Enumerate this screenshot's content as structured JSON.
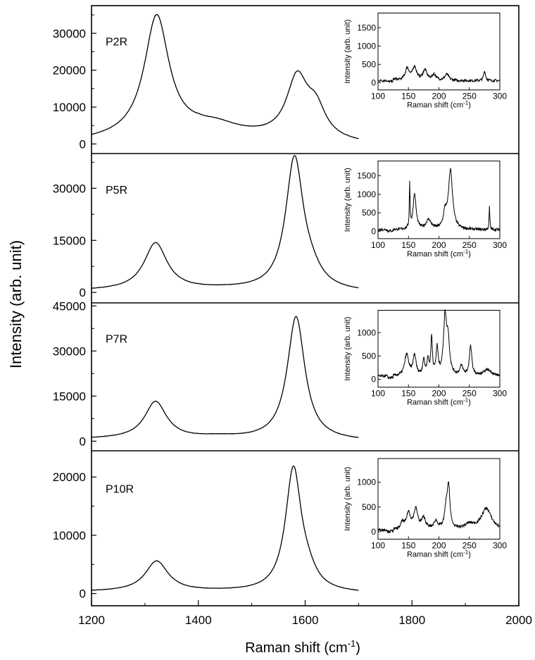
{
  "figure": {
    "ylabel": "Intensity (arb. unit)",
    "xlabel": "Raman shift (cm",
    "xlabel_sup": "-1",
    "xlabel_close": ")"
  },
  "chart_data": {
    "type": "line",
    "shared_x_axis": {
      "label": "Raman shift (cm-1)",
      "xlim": [
        1200,
        2000
      ],
      "ticks": [
        1200,
        1400,
        1600,
        1800,
        2000
      ],
      "data_range": [
        1200,
        1700
      ]
    },
    "panels": [
      {
        "label": "P2R",
        "ylim": [
          -2600,
          37500
        ],
        "yticks": [
          0,
          10000,
          20000,
          30000
        ],
        "series": [
          {
            "peaks": [
              {
                "center": 1322,
                "height": 32500,
                "width": 28
              },
              {
                "center": 1435,
                "height": 2000,
                "width": 45
              },
              {
                "center": 1585,
                "height": 16000,
                "width": 24
              },
              {
                "center": 1620,
                "height": 7500,
                "width": 22
              }
            ],
            "baseline": [
              [
                1200,
                800
              ],
              [
                1400,
                3000
              ],
              [
                1500,
                2000
              ],
              [
                1700,
                0
              ]
            ]
          }
        ],
        "inset": {
          "type": "line",
          "xlabel": "Raman shift (cm",
          "xlabel_sup": "-1",
          "xlabel_close": ")",
          "ylabel": "Intensity (arb. unit)",
          "xlim": [
            100,
            300
          ],
          "xticks": [
            100,
            150,
            200,
            250,
            300
          ],
          "ylim": [
            -200,
            1900
          ],
          "yticks": [
            0,
            500,
            1000,
            1500
          ],
          "peaks": [
            {
              "center": 127,
              "height": 30,
              "width": 4
            },
            {
              "center": 148,
              "height": 330,
              "width": 4
            },
            {
              "center": 160,
              "height": 360,
              "width": 4
            },
            {
              "center": 177,
              "height": 280,
              "width": 4
            },
            {
              "center": 192,
              "height": 160,
              "width": 4
            },
            {
              "center": 213,
              "height": 170,
              "width": 4
            },
            {
              "center": 275,
              "height": 260,
              "width": 2
            }
          ],
          "baseline": [
            [
              100,
              50
            ],
            [
              300,
              50
            ]
          ]
        }
      },
      {
        "label": "P5R",
        "ylim": [
          -3000,
          40000
        ],
        "yticks": [
          0,
          15000,
          30000
        ],
        "series": [
          {
            "peaks": [
              {
                "center": 1320,
                "height": 13500,
                "width": 26
              },
              {
                "center": 1580,
                "height": 37500,
                "width": 20
              },
              {
                "center": 1610,
                "height": 3500,
                "width": 25
              }
            ],
            "baseline": [
              [
                1200,
                500
              ],
              [
                1450,
                800
              ],
              [
                1700,
                0
              ]
            ]
          }
        ],
        "inset": {
          "type": "line",
          "xlabel": "Raman shift (cm",
          "xlabel_sup": "-1",
          "xlabel_close": ")",
          "ylabel": "Intensity (arb. unit)",
          "xlim": [
            100,
            300
          ],
          "xticks": [
            100,
            150,
            200,
            250,
            300
          ],
          "ylim": [
            -200,
            1900
          ],
          "yticks": [
            0,
            500,
            1000,
            1500
          ],
          "peaks": [
            {
              "center": 152,
              "height": 1200,
              "width": 0.7
            },
            {
              "center": 160,
              "height": 950,
              "width": 3
            },
            {
              "center": 183,
              "height": 250,
              "width": 5
            },
            {
              "center": 210,
              "height": 400,
              "width": 3
            },
            {
              "center": 219,
              "height": 1600,
              "width": 4
            },
            {
              "center": 283,
              "height": 620,
              "width": 0.7
            }
          ],
          "baseline": [
            [
              100,
              40
            ],
            [
              300,
              40
            ]
          ]
        }
      },
      {
        "label": "P7R",
        "ylim": [
          -3200,
          46000
        ],
        "yticks": [
          0,
          15000,
          30000,
          45000
        ],
        "series": [
          {
            "peaks": [
              {
                "center": 1320,
                "height": 12300,
                "width": 25
              },
              {
                "center": 1435,
                "height": 500,
                "width": 40
              },
              {
                "center": 1583,
                "height": 41000,
                "width": 20
              }
            ],
            "baseline": [
              [
                1200,
                700
              ],
              [
                1450,
                700
              ],
              [
                1700,
                0
              ]
            ]
          }
        ],
        "inset": {
          "type": "line",
          "xlabel": "Raman shift (cm",
          "xlabel_sup": "-1",
          "xlabel_close": ")",
          "ylabel": "Intensity (arb. unit)",
          "xlim": [
            100,
            300
          ],
          "xticks": [
            100,
            150,
            200,
            250,
            300
          ],
          "ylim": [
            -170,
            1480
          ],
          "yticks": [
            0,
            500,
            1000
          ],
          "peaks": [
            {
              "center": 147,
              "height": 460,
              "width": 4
            },
            {
              "center": 160,
              "height": 430,
              "width": 3
            },
            {
              "center": 175,
              "height": 330,
              "width": 2
            },
            {
              "center": 182,
              "height": 330,
              "width": 2
            },
            {
              "center": 188,
              "height": 800,
              "width": 1.5
            },
            {
              "center": 197,
              "height": 580,
              "width": 2
            },
            {
              "center": 210,
              "height": 1200,
              "width": 3
            },
            {
              "center": 215,
              "height": 700,
              "width": 3
            },
            {
              "center": 237,
              "height": 200,
              "width": 3
            },
            {
              "center": 252,
              "height": 630,
              "width": 2.5
            },
            {
              "center": 280,
              "height": 140,
              "width": 8
            }
          ],
          "baseline": [
            [
              100,
              60
            ],
            [
              300,
              60
            ]
          ]
        }
      },
      {
        "label": "P10R",
        "ylim": [
          -2100,
          24500
        ],
        "yticks": [
          0,
          10000,
          20000
        ],
        "series": [
          {
            "peaks": [
              {
                "center": 1322,
                "height": 5200,
                "width": 26
              },
              {
                "center": 1578,
                "height": 21000,
                "width": 18
              },
              {
                "center": 1605,
                "height": 2000,
                "width": 20
              }
            ],
            "baseline": [
              [
                1200,
                300
              ],
              [
                1450,
                300
              ],
              [
                1700,
                0
              ]
            ]
          }
        ],
        "inset": {
          "type": "line",
          "xlabel": "Raman shift (cm",
          "xlabel_sup": "-1",
          "xlabel_close": ")",
          "ylabel": "Intensity (arb. unit)",
          "xlim": [
            100,
            300
          ],
          "xticks": [
            100,
            150,
            200,
            250,
            300
          ],
          "ylim": [
            -150,
            1480
          ],
          "yticks": [
            0,
            500,
            1000
          ],
          "peaks": [
            {
              "center": 140,
              "height": 140,
              "width": 3
            },
            {
              "center": 150,
              "height": 330,
              "width": 4
            },
            {
              "center": 162,
              "height": 400,
              "width": 4
            },
            {
              "center": 175,
              "height": 220,
              "width": 4
            },
            {
              "center": 195,
              "height": 160,
              "width": 4
            },
            {
              "center": 212,
              "height": 420,
              "width": 3
            },
            {
              "center": 216,
              "height": 800,
              "width": 2.5
            },
            {
              "center": 250,
              "height": 100,
              "width": 10
            },
            {
              "center": 278,
              "height": 430,
              "width": 10
            }
          ],
          "baseline": [
            [
              100,
              30
            ],
            [
              300,
              30
            ]
          ]
        }
      }
    ]
  }
}
